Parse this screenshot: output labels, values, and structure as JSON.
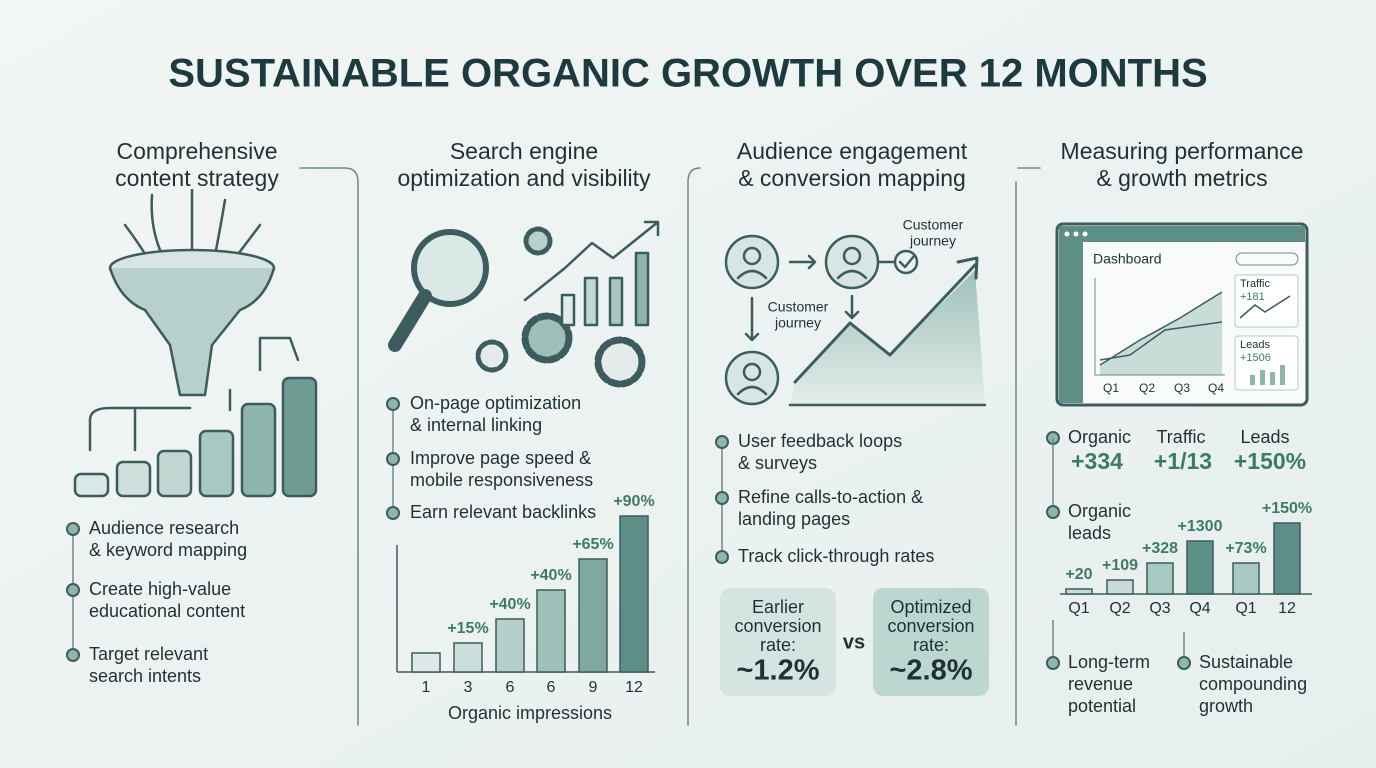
{
  "title": "SUSTAINABLE ORGANIC GROWTH OVER 12 MONTHS",
  "columns": [
    {
      "heading": [
        "Comprehensive",
        "content strategy"
      ],
      "bullets": [
        [
          "Audience research",
          "& keyword mapping"
        ],
        [
          "Create high-value",
          "educational content"
        ],
        [
          "Target relevant",
          "search intents"
        ]
      ]
    },
    {
      "heading": [
        "Search engine",
        "optimization and visibility"
      ],
      "bullets": [
        [
          "On-page optimization",
          "& internal linking"
        ],
        [
          "Improve page speed &",
          "mobile responsiveness"
        ],
        [
          "Earn relevant backlinks"
        ]
      ],
      "chart": {
        "type": "bar",
        "categories": [
          "1",
          "3",
          "6",
          "6",
          "9",
          "12"
        ],
        "values": [
          19,
          29,
          53,
          82,
          113,
          156
        ],
        "bar_labels": [
          null,
          "+15%",
          "+40%",
          "+40%",
          "+65%",
          "+90%"
        ],
        "xlabel": "Organic impressions",
        "colors": [
          "#dde9e6",
          "#cbdeda",
          "#b5d0ca",
          "#9dc0b8",
          "#7fa9a0",
          "#5e8f86"
        ]
      }
    },
    {
      "heading": [
        "Audience engagement",
        "& conversion mapping"
      ],
      "diagram": {
        "labels": [
          [
            "Customer",
            "journey"
          ],
          [
            "Customer",
            "journey"
          ]
        ]
      },
      "bullets": [
        [
          "User feedback loops",
          "& surveys"
        ],
        [
          "Refine calls-to-action &",
          "landing pages"
        ],
        [
          "Track click-through rates"
        ]
      ],
      "comparison": {
        "before": {
          "label": [
            "Earlier",
            "conversion",
            "rate:"
          ],
          "value": "~1.2%"
        },
        "separator": "vs",
        "after": {
          "label": [
            "Optimized",
            "conversion",
            "rate:"
          ],
          "value": "~2.8%"
        }
      }
    },
    {
      "heading": [
        "Measuring performance",
        "& growth metrics"
      ],
      "dashboard": {
        "title": "Dashboard",
        "quarters": [
          "Q1",
          "Q2",
          "Q3",
          "Q4"
        ],
        "cards": [
          {
            "label": "Traffic",
            "value": "+181"
          },
          {
            "label": "Leads",
            "value": "+1506"
          }
        ]
      },
      "metrics": [
        {
          "label": "Organic",
          "value": "+334"
        },
        {
          "label": "Traffic",
          "value": "+1/13"
        },
        {
          "label": "Leads",
          "value": "+150%"
        }
      ],
      "chart_label": [
        "Organic",
        "leads"
      ],
      "chart": {
        "type": "bar",
        "categories": [
          "Q1",
          "Q2",
          "Q3",
          "Q4",
          "Q1",
          "12"
        ],
        "values": [
          5,
          14,
          31,
          53,
          31,
          71
        ],
        "bar_labels": [
          "+20",
          "+109",
          "+328",
          "+1300",
          "+73%",
          "+150%"
        ],
        "colors": [
          "#c7dcd7",
          "#c7dcd7",
          "#a9cac2",
          "#5e8f86",
          "#a9cac2",
          "#5e8f86"
        ]
      },
      "bullets": [
        [
          "Long-term",
          "revenue",
          "potential"
        ],
        [
          "Sustainable",
          "compounding",
          "growth"
        ]
      ]
    }
  ]
}
